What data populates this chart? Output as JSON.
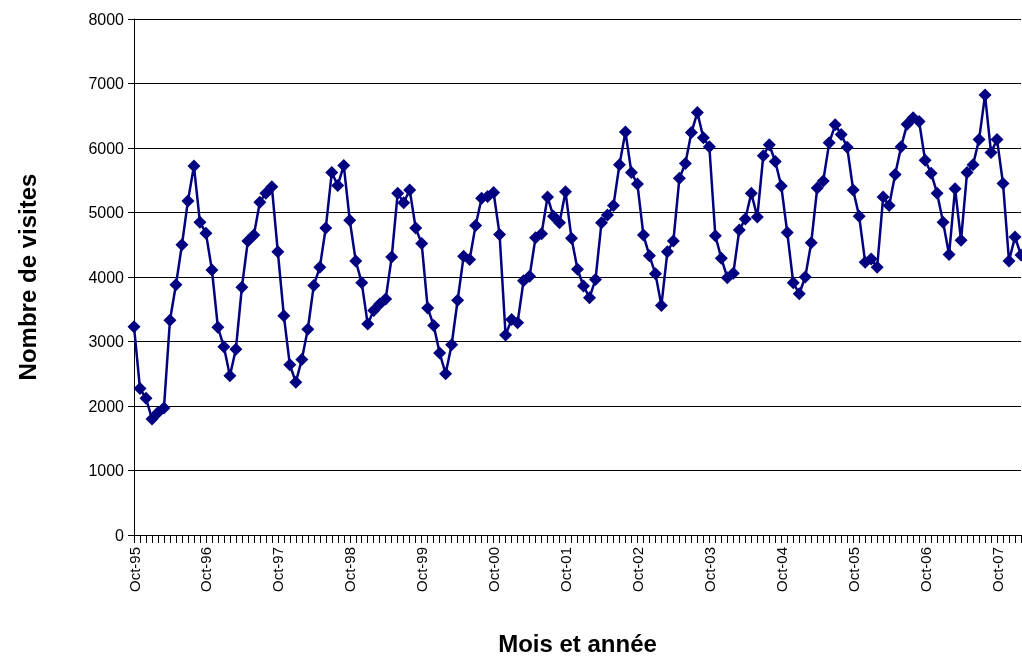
{
  "chart_data": {
    "type": "line",
    "xlabel": "Mois et année",
    "ylabel": "Nombre de visites",
    "categories": [
      "Oct-95",
      null,
      null,
      null,
      null,
      null,
      null,
      null,
      null,
      null,
      null,
      null,
      "Oct-96",
      null,
      null,
      null,
      null,
      null,
      null,
      null,
      null,
      null,
      null,
      null,
      "Oct-97",
      null,
      null,
      null,
      null,
      null,
      null,
      null,
      null,
      null,
      null,
      null,
      "Oct-98",
      null,
      null,
      null,
      null,
      null,
      null,
      null,
      null,
      null,
      null,
      null,
      "Oct-99",
      null,
      null,
      null,
      null,
      null,
      null,
      null,
      null,
      null,
      null,
      null,
      "Oct-00",
      null,
      null,
      null,
      null,
      null,
      null,
      null,
      null,
      null,
      null,
      null,
      "Oct-01",
      null,
      null,
      null,
      null,
      null,
      null,
      null,
      null,
      null,
      null,
      null,
      "Oct-02",
      null,
      null,
      null,
      null,
      null,
      null,
      null,
      null,
      null,
      null,
      null,
      "Oct-03",
      null,
      null,
      null,
      null,
      null,
      null,
      null,
      null,
      null,
      null,
      null,
      "Oct-04",
      null,
      null,
      null,
      null,
      null,
      null,
      null,
      null,
      null,
      null,
      null,
      "Oct-05",
      null,
      null,
      null,
      null,
      null,
      null,
      null,
      null,
      null,
      null,
      null,
      "Oct-06",
      null,
      null,
      null,
      null,
      null,
      null,
      null,
      null,
      null,
      null,
      null,
      "Oct-07",
      null,
      null,
      null,
      null
    ],
    "series": [
      {
        "color": "#000080",
        "values": [
          3230,
          2270,
          2120,
          1800,
          1900,
          1970,
          3330,
          3880,
          4500,
          5180,
          5720,
          4850,
          4680,
          4110,
          3220,
          2920,
          2470,
          2880,
          3840,
          4560,
          4650,
          5160,
          5300,
          5400,
          4390,
          3400,
          2640,
          2370,
          2720,
          3190,
          3870,
          4150,
          4760,
          5620,
          5420,
          5730,
          4880,
          4250,
          3910,
          3270,
          3480,
          3580,
          3660,
          4310,
          5300,
          5150,
          5350,
          4760,
          4520,
          3520,
          3250,
          2820,
          2500,
          2950,
          3640,
          4320,
          4270,
          4800,
          5220,
          5250,
          5310,
          4660,
          3100,
          3340,
          3290,
          3940,
          4010,
          4610,
          4670,
          5240,
          4940,
          4840,
          5320,
          4600,
          4120,
          3860,
          3680,
          3960,
          4840,
          4960,
          5110,
          5740,
          6250,
          5620,
          5440,
          4650,
          4330,
          4050,
          3560,
          4390,
          4560,
          5530,
          5760,
          6240,
          6550,
          6160,
          6020,
          4640,
          4290,
          3990,
          4060,
          4730,
          4900,
          5300,
          4930,
          5880,
          6050,
          5790,
          5410,
          4690,
          3910,
          3740,
          4000,
          4530,
          5380,
          5490,
          6080,
          6360,
          6210,
          6010,
          5350,
          4940,
          4230,
          4280,
          4150,
          5240,
          5110,
          5590,
          6020,
          6370,
          6470,
          6410,
          5810,
          5610,
          5300,
          4850,
          4350,
          5370,
          4570,
          5620,
          5740,
          6130,
          6820,
          5930,
          6130,
          5450,
          4250,
          4620,
          4340
        ]
      }
    ],
    "ylim": [
      0,
      8000
    ],
    "yticks": [
      0,
      1000,
      2000,
      3000,
      4000,
      5000,
      6000,
      7000,
      8000
    ],
    "grid": "y",
    "marker": "diamond",
    "line_style": "solid"
  }
}
